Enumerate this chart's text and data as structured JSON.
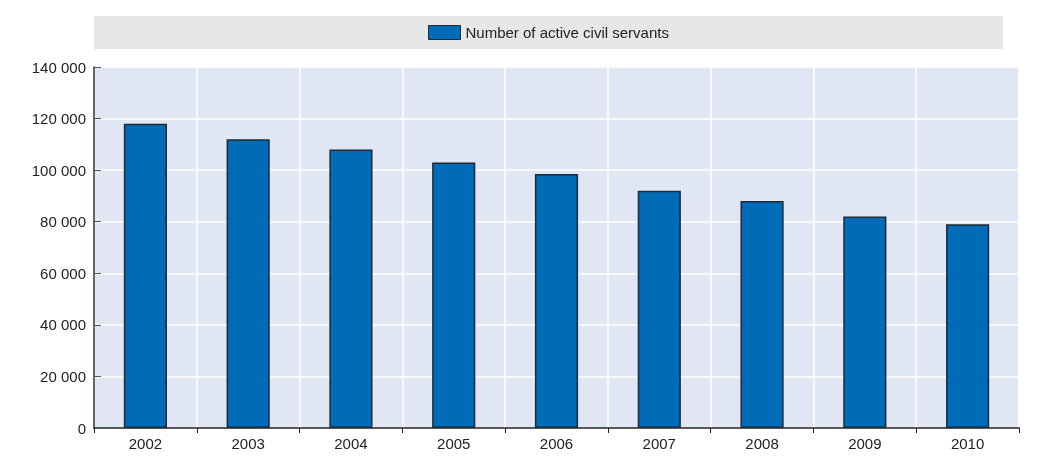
{
  "chart_data": {
    "type": "bar",
    "categories": [
      "2002",
      "2003",
      "2004",
      "2005",
      "2006",
      "2007",
      "2008",
      "2009",
      "2010"
    ],
    "series": [
      {
        "name": "Number of active civil servants",
        "color": "#006bb6",
        "values": [
          118000,
          112000,
          108000,
          103000,
          98500,
          92000,
          88000,
          82000,
          79000
        ]
      }
    ],
    "ylim": [
      0,
      140000
    ],
    "yticks": [
      {
        "value": 0,
        "label": "0"
      },
      {
        "value": 20000,
        "label": "20 000"
      },
      {
        "value": 40000,
        "label": "40 000"
      },
      {
        "value": 60000,
        "label": "60 000"
      },
      {
        "value": 80000,
        "label": "80 000"
      },
      {
        "value": 100000,
        "label": "100 000"
      },
      {
        "value": 120000,
        "label": "120 000"
      },
      {
        "value": 140000,
        "label": "140 000"
      }
    ],
    "grid": true,
    "legend": "top"
  }
}
